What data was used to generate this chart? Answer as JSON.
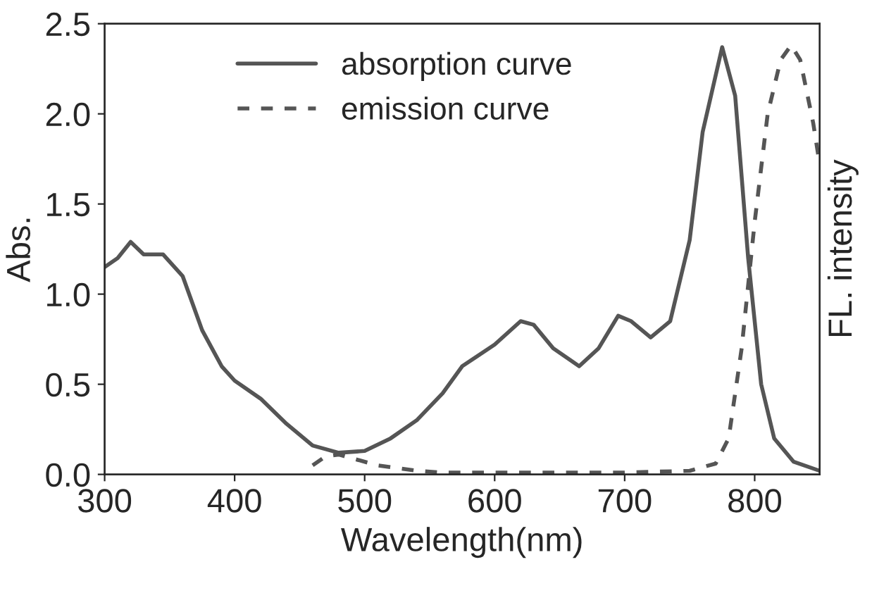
{
  "chart_data": {
    "type": "line",
    "xlabel": "Wavelength(nm)",
    "ylabel": "Abs.",
    "y2label": "FL. intensity",
    "xlim": [
      300,
      850
    ],
    "xticks": [
      300,
      400,
      500,
      600,
      700,
      800
    ],
    "ylim": [
      0,
      2.5
    ],
    "yticks": [
      {
        "value": 0,
        "label": "0.0"
      },
      0.5,
      {
        "value": 1,
        "label": "1.0"
      },
      1.5,
      {
        "value": 2,
        "label": "2.0"
      },
      2.5
    ],
    "grid": false,
    "legend": "top",
    "marker": "none",
    "series": [
      {
        "name": "absorption curve",
        "color": "#555555",
        "line_style": "solid",
        "x": [
          300,
          310,
          320,
          330,
          345,
          360,
          375,
          390,
          400,
          420,
          440,
          460,
          480,
          500,
          520,
          540,
          560,
          575,
          600,
          620,
          630,
          645,
          665,
          680,
          695,
          705,
          720,
          735,
          750,
          760,
          775,
          785,
          795,
          805,
          815,
          830,
          850
        ],
        "values": [
          1.15,
          1.2,
          1.29,
          1.22,
          1.22,
          1.1,
          0.8,
          0.6,
          0.52,
          0.42,
          0.28,
          0.16,
          0.12,
          0.13,
          0.2,
          0.3,
          0.45,
          0.6,
          0.72,
          0.85,
          0.83,
          0.7,
          0.6,
          0.7,
          0.88,
          0.85,
          0.76,
          0.85,
          1.3,
          1.9,
          2.37,
          2.1,
          1.2,
          0.5,
          0.2,
          0.07,
          0.02
        ]
      },
      {
        "name": "emission curve",
        "color": "#555555",
        "line_style": "dashed",
        "x": [
          460,
          470,
          480,
          490,
          510,
          540,
          560,
          600,
          700,
          750,
          770,
          780,
          790,
          800,
          810,
          820,
          828,
          835,
          845,
          850
        ],
        "values": [
          0.05,
          0.1,
          0.11,
          0.09,
          0.05,
          0.02,
          0.01,
          0.01,
          0.01,
          0.02,
          0.06,
          0.2,
          0.7,
          1.4,
          2.0,
          2.3,
          2.38,
          2.3,
          1.95,
          1.72
        ]
      }
    ]
  }
}
